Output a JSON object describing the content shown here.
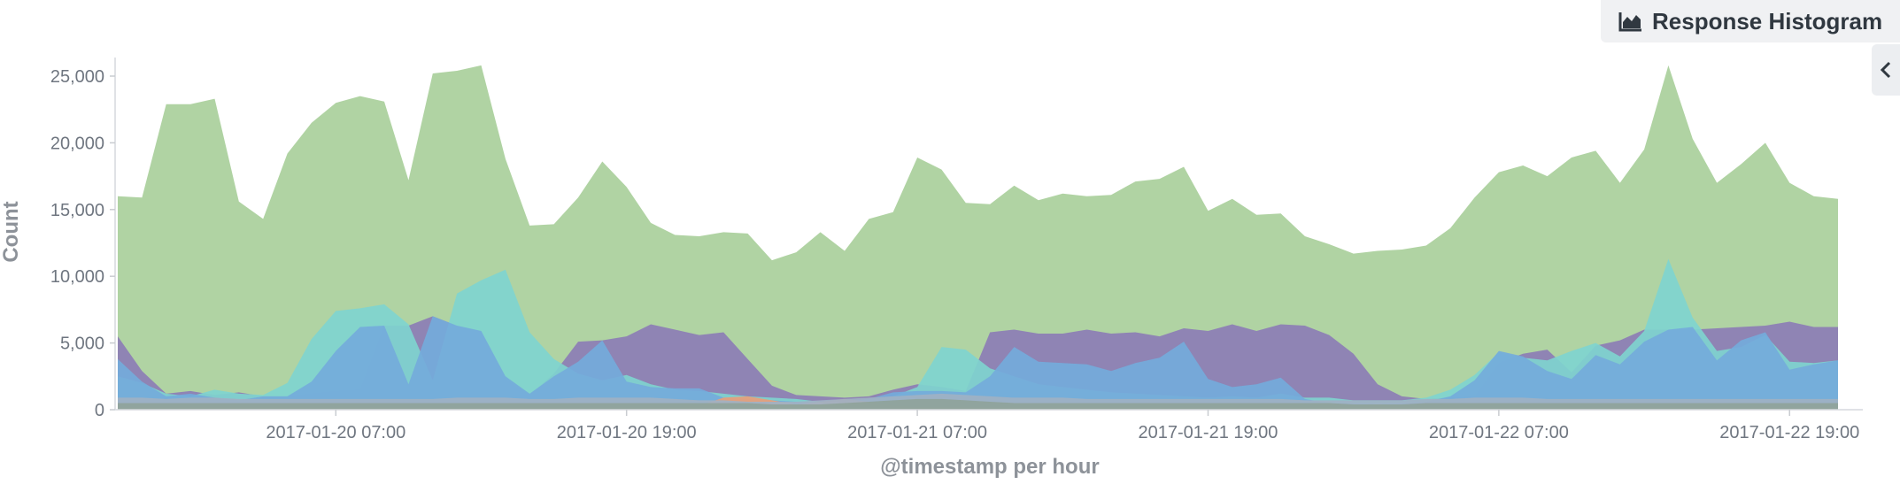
{
  "panel": {
    "title": "Response Histogram",
    "title_icon": "area-chart-icon",
    "toggle_icon": "chevron-left-icon"
  },
  "chart_data": {
    "type": "area",
    "title": "Response Histogram",
    "xlabel": "@timestamp per hour",
    "ylabel": "Count",
    "ylim": [
      0,
      26000
    ],
    "yticks": [
      0,
      5000,
      10000,
      15000,
      20000,
      25000
    ],
    "ytick_labels": [
      "0",
      "5,000",
      "10,000",
      "15,000",
      "20,000",
      "25,000"
    ],
    "x_start": "2017-01-19 22:00",
    "x_step": "1 hour",
    "xtick_labels": [
      "2017-01-20 07:00",
      "2017-01-20 19:00",
      "2017-01-21 07:00",
      "2017-01-21 19:00",
      "2017-01-22 07:00",
      "2017-01-22 19:00"
    ],
    "xtick_index": [
      9,
      21,
      33,
      45,
      57,
      69
    ],
    "grid": false,
    "stacked": false,
    "series": [
      {
        "color": "#b0d3a3",
        "values": [
          16000,
          15900,
          22900,
          22900,
          23300,
          15600,
          14300,
          19200,
          21500,
          23000,
          23500,
          23100,
          17200,
          25200,
          25400,
          25800,
          18800,
          13800,
          13900,
          15900,
          18600,
          16700,
          14000,
          13100,
          13000,
          13300,
          13200,
          11200,
          11800,
          13300,
          11900,
          14300,
          14800,
          18900,
          18000,
          15500,
          15400,
          16800,
          15700,
          16200,
          16000,
          16100,
          17100,
          17300,
          18200,
          14900,
          15800,
          14600,
          14700,
          13000,
          12400,
          11700,
          11900,
          12000,
          12300,
          13600,
          15900,
          17800,
          18300,
          17500,
          18900,
          19400,
          17000,
          19500,
          25800,
          20300,
          17000,
          18400,
          20000,
          17000,
          16000,
          15800
        ]
      },
      {
        "color": "#8c7db5",
        "values": [
          5500,
          2900,
          1200,
          1400,
          1100,
          1300,
          1000,
          1000,
          1200,
          1400,
          1500,
          6300,
          6300,
          7000,
          6300,
          5900,
          2300,
          1100,
          2700,
          5100,
          5200,
          5500,
          6400,
          6000,
          5600,
          5800,
          3800,
          1800,
          1100,
          1000,
          900,
          1000,
          1500,
          1900,
          1700,
          1400,
          5800,
          6000,
          5700,
          5700,
          6000,
          5700,
          5800,
          5500,
          6100,
          5900,
          6400,
          5900,
          6400,
          6300,
          5600,
          4200,
          1900,
          1000,
          800,
          900,
          1000,
          3500,
          4200,
          4500,
          2800,
          4800,
          5200,
          6000,
          6000,
          6000,
          6100,
          6200,
          6300,
          6600,
          6200,
          6200
        ]
      },
      {
        "color": "#7fd4cf",
        "values": [
          2500,
          2000,
          1200,
          1000,
          1500,
          1200,
          1100,
          2000,
          5300,
          7400,
          7600,
          7900,
          6400,
          2200,
          8700,
          9700,
          10500,
          5800,
          3800,
          2700,
          2200,
          2600,
          1900,
          1500,
          1400,
          1200,
          1000,
          900,
          800,
          600,
          500,
          700,
          1000,
          1700,
          4700,
          4500,
          3100,
          2500,
          1900,
          1700,
          1500,
          1300,
          1200,
          1100,
          1000,
          900,
          1000,
          900,
          1200,
          900,
          900,
          700,
          700,
          700,
          900,
          1500,
          2600,
          4300,
          3900,
          3700,
          4400,
          5000,
          4000,
          5900,
          11300,
          6900,
          4400,
          4700,
          5600,
          3600,
          3500,
          3700
        ]
      },
      {
        "color": "#74abdb",
        "values": [
          3800,
          2100,
          1000,
          1200,
          900,
          700,
          1000,
          1000,
          2100,
          4400,
          6200,
          6300,
          1900,
          7000,
          6300,
          5900,
          2500,
          1200,
          2500,
          3600,
          5200,
          2100,
          1700,
          1600,
          1600,
          900,
          800,
          700,
          600,
          500,
          600,
          800,
          1300,
          1400,
          1400,
          1300,
          2500,
          4700,
          3600,
          3500,
          3400,
          2900,
          3500,
          3900,
          5100,
          2300,
          1700,
          1900,
          2400,
          800,
          500,
          500,
          400,
          500,
          600,
          1000,
          2200,
          4400,
          4000,
          2900,
          2300,
          4100,
          3400,
          5100,
          6000,
          6200,
          3700,
          5200,
          5800,
          3000,
          3400,
          3700
        ]
      },
      {
        "color": "#e8a07a",
        "values": [
          200,
          200,
          200,
          200,
          200,
          200,
          200,
          200,
          200,
          200,
          200,
          200,
          200,
          200,
          200,
          200,
          200,
          200,
          200,
          200,
          200,
          200,
          200,
          200,
          300,
          900,
          1000,
          700,
          400,
          600,
          800,
          600,
          300,
          200,
          200,
          200,
          200,
          200,
          200,
          200,
          200,
          200,
          200,
          200,
          200,
          200,
          200,
          200,
          200,
          200,
          200,
          200,
          200,
          200,
          200,
          200,
          200,
          200,
          200,
          200,
          200,
          200,
          200,
          200,
          200,
          200,
          200,
          200,
          200,
          200,
          200,
          200
        ]
      },
      {
        "color": "#9fb1c3",
        "values": [
          900,
          900,
          800,
          900,
          900,
          800,
          800,
          800,
          800,
          800,
          800,
          800,
          800,
          800,
          900,
          900,
          900,
          800,
          800,
          900,
          900,
          900,
          900,
          800,
          700,
          700,
          600,
          600,
          600,
          700,
          800,
          900,
          1000,
          1100,
          1200,
          1100,
          1000,
          900,
          900,
          900,
          800,
          800,
          800,
          800,
          800,
          800,
          800,
          800,
          800,
          700,
          700,
          700,
          700,
          700,
          800,
          800,
          900,
          900,
          900,
          800,
          800,
          800,
          800,
          800,
          800,
          800,
          800,
          800,
          800,
          800,
          800,
          800
        ]
      },
      {
        "color": "#8fa39a",
        "values": [
          500,
          500,
          500,
          500,
          500,
          500,
          500,
          500,
          500,
          500,
          500,
          500,
          500,
          500,
          500,
          500,
          500,
          500,
          500,
          500,
          500,
          500,
          500,
          500,
          500,
          500,
          500,
          400,
          400,
          400,
          500,
          600,
          700,
          800,
          800,
          700,
          600,
          500,
          500,
          500,
          500,
          500,
          500,
          500,
          500,
          500,
          500,
          500,
          500,
          500,
          500,
          400,
          400,
          400,
          500,
          500,
          500,
          500,
          500,
          500,
          500,
          500,
          500,
          500,
          500,
          500,
          500,
          500,
          500,
          500,
          500,
          500
        ]
      }
    ]
  }
}
